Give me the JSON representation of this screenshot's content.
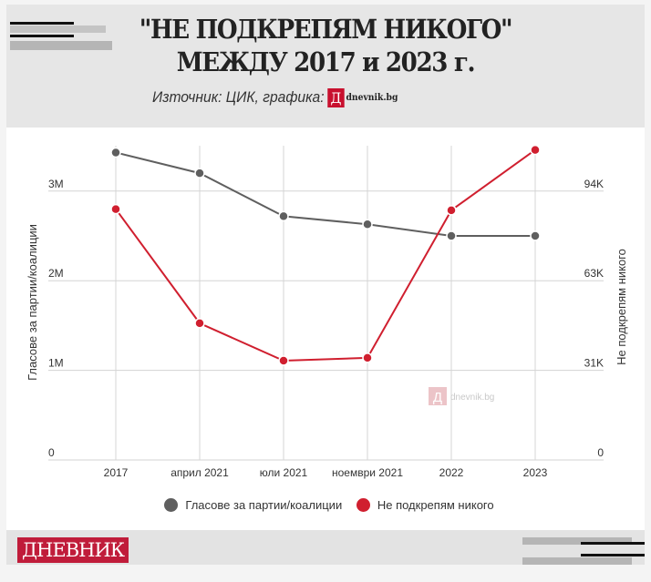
{
  "header": {
    "title_line1": "\"НЕ ПОДКРЕПЯМ НИКОГО\"",
    "title_line2": "МЕЖДУ 2017 и 2023 г.",
    "source": "Източник: ЦИК, графика:",
    "source_logo_letter": "Д",
    "source_logo_text": "dnevnik.bg"
  },
  "footer": {
    "brand": "ДНЕВНИК"
  },
  "watermark": {
    "letter": "Д",
    "text": "dnevnik.bg"
  },
  "chart_data": {
    "type": "line",
    "categories": [
      "2017",
      "април 2021",
      "юли 2021",
      "ноември 2021",
      "2022",
      "2023"
    ],
    "y_left": {
      "label": "Гласове за партии/коалиции",
      "ticks": [
        "0",
        "1M",
        "2M",
        "3M"
      ],
      "tick_values": [
        0,
        1000000,
        2000000,
        3000000
      ],
      "range": [
        0,
        3500000
      ]
    },
    "y_right": {
      "label": "Не подкрепям никого",
      "ticks": [
        "0",
        "31K",
        "63K",
        "94K"
      ],
      "tick_values": [
        0,
        31333,
        62667,
        94000
      ],
      "range": [
        0,
        109667
      ]
    },
    "grid": true,
    "legend": "bottom",
    "series": [
      {
        "name": "Гласове за партии/коалиции",
        "axis": "left",
        "color": "#5f5f5f",
        "values": [
          3430000,
          3200000,
          2720000,
          2630000,
          2500000,
          2500000
        ]
      },
      {
        "name": "Не подкрепям никого",
        "axis": "right",
        "color": "#d01f2f",
        "values": [
          87700,
          47800,
          34700,
          35700,
          87300,
          108400
        ]
      }
    ]
  }
}
